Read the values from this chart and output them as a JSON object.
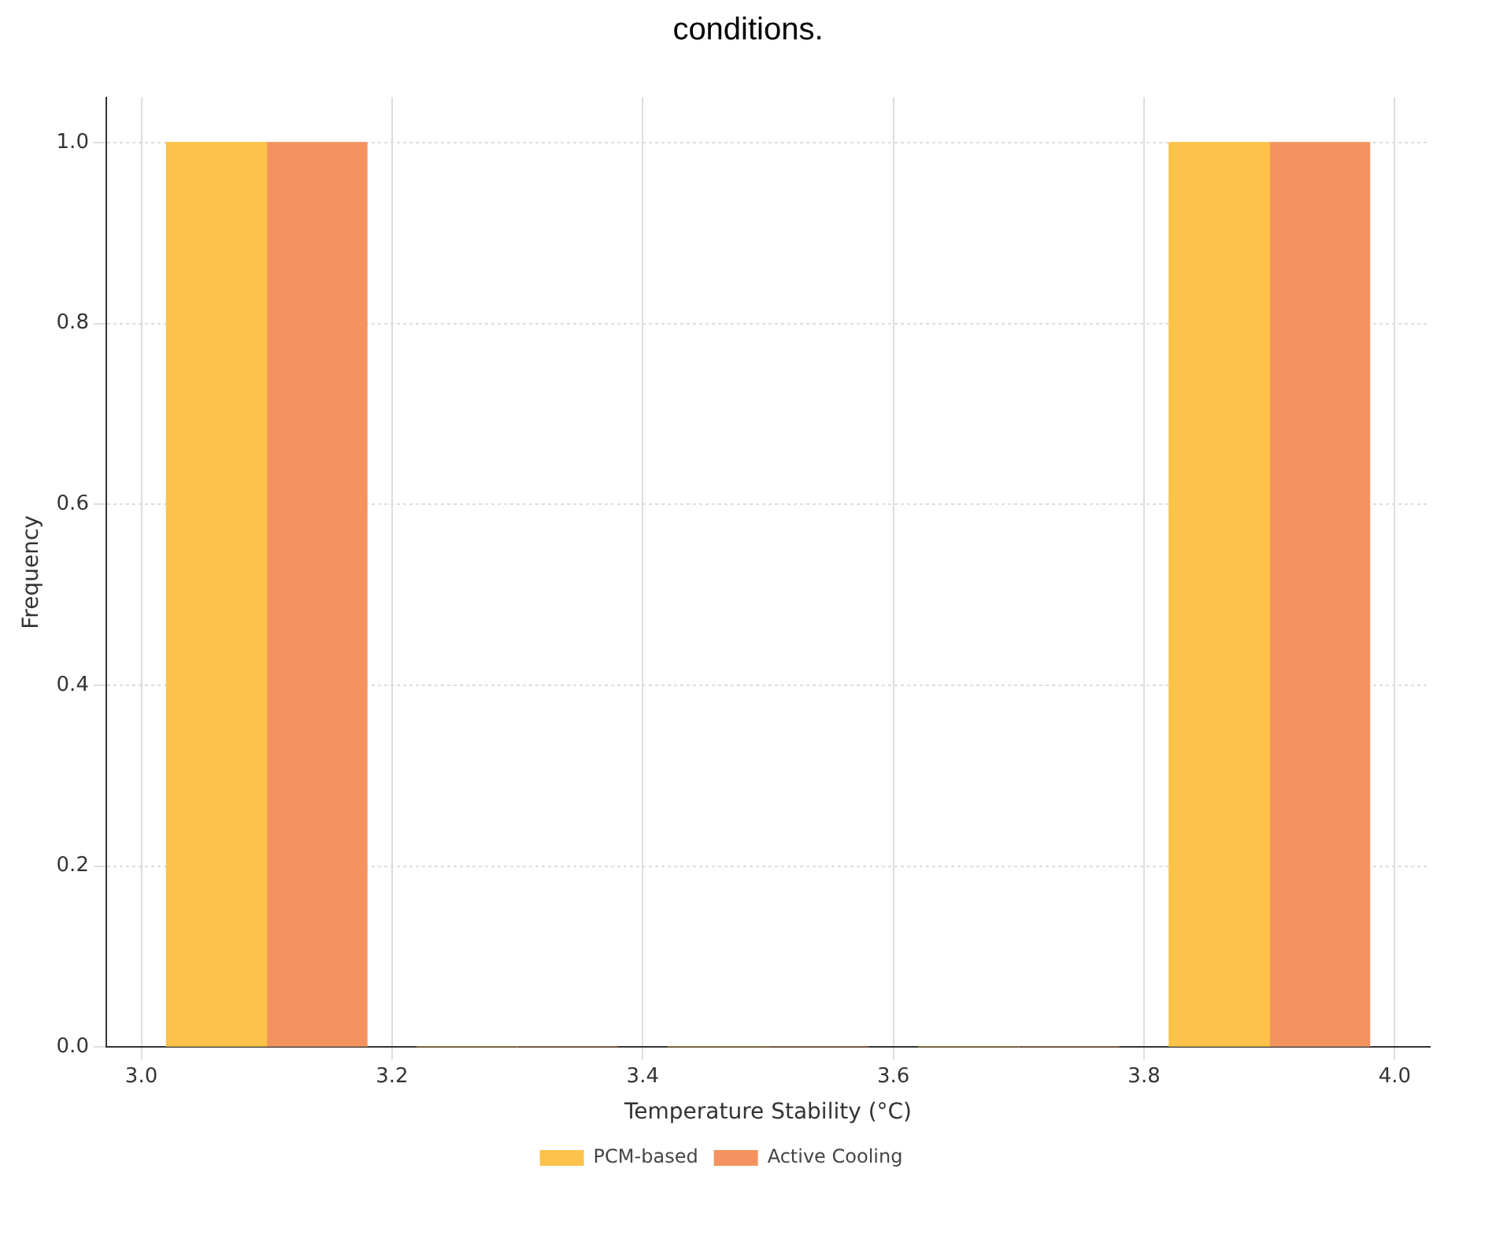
{
  "chart_data": {
    "type": "histogram",
    "xlabel": "Temperature Stability (°C)",
    "ylabel": "Frequency",
    "annotations": [
      "conditions."
    ],
    "bins": [
      3.0,
      3.2,
      3.4,
      3.6,
      3.8,
      4.0
    ],
    "series": [
      {
        "name": "PCM-based",
        "color": "#fcc24a",
        "values": [
          1,
          0,
          0,
          0,
          1
        ]
      },
      {
        "name": "Active Cooling",
        "color": "#f4935f",
        "values": [
          1,
          0,
          0,
          0,
          1
        ]
      }
    ],
    "xlim": [
      2.972,
      4.028
    ],
    "xticks": [
      {
        "value": 3,
        "label": "3.0"
      },
      3.2,
      3.4,
      3.6,
      3.8,
      {
        "value": 4,
        "label": "4.0"
      }
    ],
    "ylim": [
      0,
      1.05
    ],
    "yticks": [
      {
        "value": 0,
        "label": "0.0"
      },
      0.2,
      0.4,
      0.6,
      0.8,
      {
        "value": 1,
        "label": "1.0"
      }
    ],
    "grid": true,
    "legend": "bottom"
  }
}
